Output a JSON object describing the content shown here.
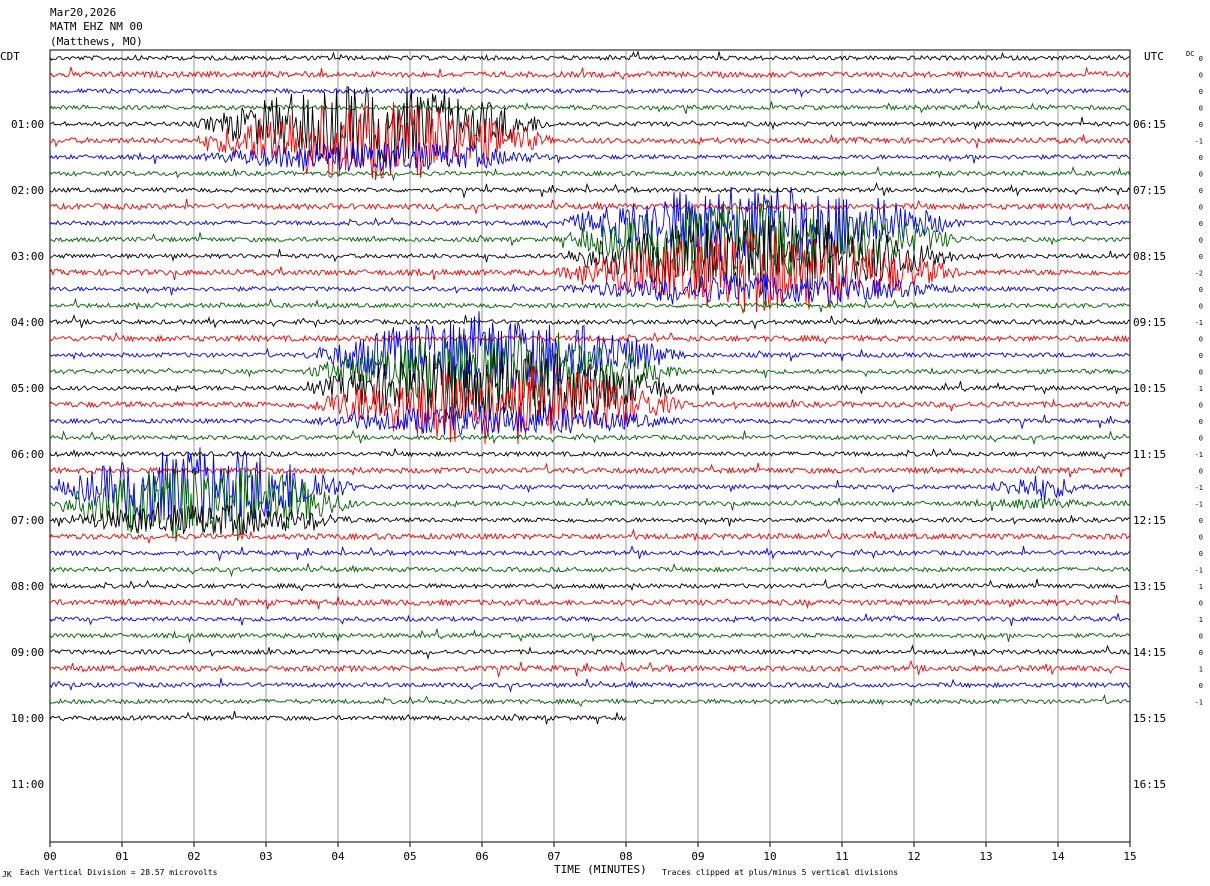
{
  "header": {
    "date": "Mar20,2026",
    "station": "MATM EHZ NM 00",
    "location": "(Matthews, MO)"
  },
  "left_tz": "CDT",
  "right_tz": "UTC",
  "dc_header": "DC",
  "footer": {
    "scale": "Each Vertical Division =   28.57 microvolts",
    "x_title": "TIME (MINUTES)",
    "clip_note": "Traces clipped at plus/minus 5 vertical divisions",
    "corner_mark": "JK"
  },
  "colors": {
    "trace_cycle": [
      "#000000",
      "#ff0000",
      "#0000ff",
      "#006400"
    ],
    "grid": "#808080",
    "frame": "#000000"
  },
  "chart_data": {
    "type": "line",
    "title": "MATM EHZ NM 00 (Matthews, MO)",
    "xlabel": "TIME (MINUTES)",
    "ylabel": "",
    "xlim": [
      0,
      15
    ],
    "x_ticks": [
      "00",
      "01",
      "02",
      "03",
      "04",
      "05",
      "06",
      "07",
      "08",
      "09",
      "10",
      "11",
      "12",
      "13",
      "14",
      "15"
    ],
    "lines_per_hour": 4,
    "minutes_per_line": 15,
    "left_hour_labels": [
      "01:00",
      "02:00",
      "03:00",
      "04:00",
      "05:00",
      "06:00",
      "07:00",
      "08:00",
      "09:00",
      "10:00",
      "11:00"
    ],
    "right_hour_labels": [
      "06:15",
      "07:15",
      "08:15",
      "09:15",
      "10:15",
      "11:15",
      "12:15",
      "13:15",
      "14:15",
      "15:15",
      "16:15"
    ],
    "dc_offsets": [
      "0",
      "0",
      "0",
      "0",
      "0",
      "-1",
      "0",
      "0",
      "0",
      "0",
      "0",
      "0",
      "0",
      "-2",
      "0",
      "0",
      "-1",
      "0",
      "0",
      "0",
      "1",
      "0",
      "0",
      "0",
      "-1",
      "0",
      "-1",
      "-1",
      "0",
      "0",
      "0",
      "-1",
      "1",
      "0",
      "1",
      "0",
      "0",
      "1",
      "0",
      "-1"
    ],
    "trace_count": 41,
    "last_trace_end_minute": 8.0,
    "events": [
      {
        "start_line": 4,
        "end_line": 5,
        "start_min": 2.0,
        "end_min": 9.0,
        "amplitude": "clipped",
        "label_color": "red"
      },
      {
        "start_line": 10,
        "end_line": 13,
        "start_min": 7.0,
        "end_min": 15.0,
        "amplitude": "clipped",
        "label_color": "green"
      },
      {
        "start_line": 18,
        "end_line": 21,
        "start_min": 3.5,
        "end_min": 11.0,
        "amplitude": "clipped",
        "label_color": "green"
      },
      {
        "start_line": 26,
        "end_line": 27,
        "start_min": 0.0,
        "end_min": 6.0,
        "amplitude": "clipped",
        "label_color": "green"
      },
      {
        "start_line": 26,
        "end_line": 26,
        "start_min": 13.0,
        "end_min": 15.0,
        "amplitude": "moderate",
        "label_color": "blue"
      }
    ]
  }
}
